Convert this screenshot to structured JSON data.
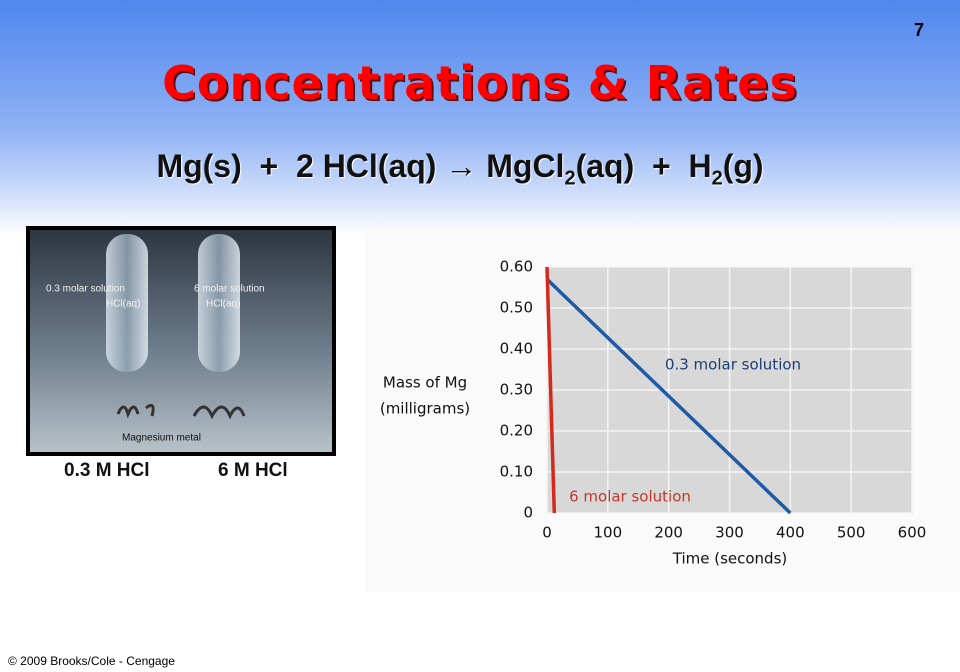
{
  "page_number": "7",
  "title": "Concentrations & Rates",
  "equation": [
    {
      "text": "Mg(s)  +  2 HCl(aq) ",
      "sub": false
    },
    {
      "text": "→",
      "sub": false
    },
    {
      "text": " MgCl",
      "sub": false
    },
    {
      "text": "2",
      "sub": true
    },
    {
      "text": "(aq)  +  H",
      "sub": false
    },
    {
      "text": "2",
      "sub": true
    },
    {
      "text": "(g)",
      "sub": false
    }
  ],
  "photo": {
    "labels": [
      "0.3 molar solution",
      "HCl(aq)",
      "6 molar solution",
      "HCl(aq)",
      "Magnesium metal"
    ]
  },
  "captions": [
    "0.3 M HCl",
    "6 M HCl"
  ],
  "footer": "© 2009 Brooks/Cole - Cengage",
  "chart_data": {
    "type": "line",
    "y_label": [
      "Mass of Mg",
      "(milligrams)"
    ],
    "x_label": "Time (seconds)",
    "xlim": [
      0,
      600
    ],
    "xticks": [
      0,
      100,
      200,
      300,
      400,
      500,
      600
    ],
    "ylim": [
      0,
      0.6
    ],
    "yticks": [
      0,
      {
        "value": 0.1,
        "label": "0.10"
      },
      {
        "value": 0.2,
        "label": "0.20"
      },
      {
        "value": 0.3,
        "label": "0.30"
      },
      {
        "value": 0.4,
        "label": "0.40"
      },
      {
        "value": 0.5,
        "label": "0.50"
      },
      {
        "value": 0.6,
        "label": "0.60"
      }
    ],
    "grid": true,
    "series": [
      {
        "name": "0.3 molar solution",
        "color": "#1f5aa6",
        "x": [
          0,
          400
        ],
        "values": [
          0.57,
          0
        ]
      },
      {
        "name": "6 molar solution",
        "color": "#d42a1e",
        "x": [
          0,
          12
        ],
        "values": [
          0.6,
          0
        ]
      }
    ]
  }
}
